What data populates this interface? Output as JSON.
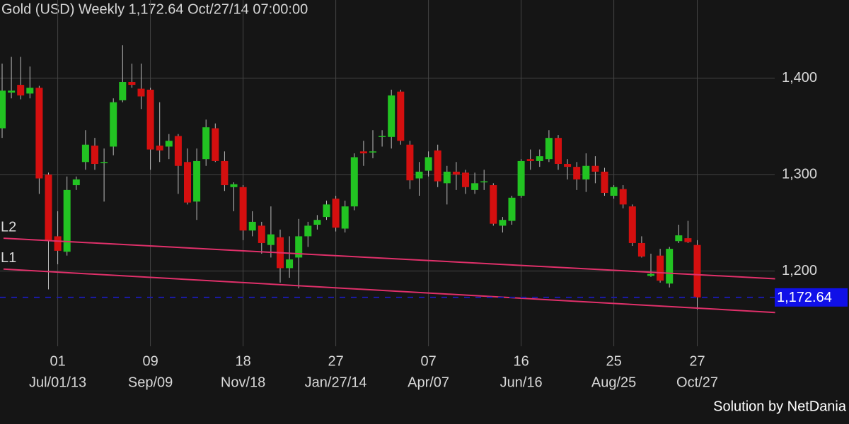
{
  "chart_data": {
    "type": "candlestick",
    "title": "Gold (USD) Weekly 1,172.64 Oct/27/14 07:00:00",
    "credit": "Solution by NetDania",
    "categories": [
      null,
      null,
      null,
      null,
      null,
      null,
      "01",
      null,
      null,
      null,
      null,
      null,
      null,
      null,
      null,
      null,
      "09",
      null,
      null,
      null,
      null,
      null,
      null,
      null,
      null,
      null,
      "18",
      null,
      null,
      null,
      null,
      null,
      null,
      null,
      null,
      null,
      "27",
      null,
      null,
      null,
      null,
      null,
      null,
      null,
      null,
      null,
      "07",
      null,
      null,
      null,
      null,
      null,
      null,
      null,
      null,
      null,
      "16",
      null,
      null,
      null,
      null,
      null,
      null,
      null,
      null,
      null,
      "25",
      null,
      null,
      null,
      null,
      null,
      null,
      null,
      null,
      "27"
    ],
    "subcategories": [
      null,
      null,
      null,
      null,
      null,
      null,
      "Jul/01/13",
      null,
      null,
      null,
      null,
      null,
      null,
      null,
      null,
      null,
      "Sep/09",
      null,
      null,
      null,
      null,
      null,
      null,
      null,
      null,
      null,
      "Nov/18",
      null,
      null,
      null,
      null,
      null,
      null,
      null,
      null,
      null,
      "Jan/27/14",
      null,
      null,
      null,
      null,
      null,
      null,
      null,
      null,
      null,
      "Apr/07",
      null,
      null,
      null,
      null,
      null,
      null,
      null,
      null,
      null,
      "Jun/16",
      null,
      null,
      null,
      null,
      null,
      null,
      null,
      null,
      null,
      "Aug/25",
      null,
      null,
      null,
      null,
      null,
      null,
      null,
      null,
      "Oct/27"
    ],
    "open": [
      1348,
      1385,
      1393,
      1384,
      1390,
      1300,
      1236,
      1220,
      1289,
      1313,
      1330,
      1312,
      1329,
      1377,
      1396,
      1389,
      1388,
      1330,
      1329,
      1340,
      1313,
      1272,
      1316,
      1348,
      1314,
      1287,
      1287,
      1242,
      1247,
      1227,
      1235,
      1203,
      1214,
      1236,
      1248,
      1256,
      1275,
      1244,
      1267,
      1324,
      1323,
      1339,
      1339,
      1386,
      1331,
      1296,
      1304,
      1325,
      1291,
      1303,
      1302,
      1284,
      1292,
      1289,
      1247,
      1252,
      1278,
      1316,
      1314,
      1316,
      1338,
      1311,
      1308,
      1295,
      1309,
      1303,
      1278,
      1285,
      1267,
      1229,
      1195,
      1216,
      1187,
      1231,
      1234,
      1227
    ],
    "high": [
      1415,
      1422,
      1422,
      1412,
      1392,
      1302,
      1262,
      1298,
      1298,
      1346,
      1338,
      1327,
      1379,
      1434,
      1415,
      1415,
      1390,
      1375,
      1342,
      1342,
      1327,
      1327,
      1357,
      1353,
      1324,
      1292,
      1289,
      1262,
      1251,
      1267,
      1243,
      1236,
      1254,
      1251,
      1258,
      1273,
      1278,
      1273,
      1322,
      1335,
      1346,
      1346,
      1388,
      1388,
      1335,
      1313,
      1324,
      1331,
      1309,
      1313,
      1305,
      1302,
      1305,
      1291,
      1256,
      1278,
      1316,
      1326,
      1326,
      1346,
      1341,
      1316,
      1313,
      1322,
      1319,
      1307,
      1289,
      1289,
      1269,
      1236,
      1218,
      1223,
      1225,
      1248,
      1252,
      1232
    ],
    "low": [
      1338,
      1379,
      1378,
      1379,
      1280,
      1181,
      1207,
      1216,
      1284,
      1305,
      1305,
      1272,
      1320,
      1375,
      1390,
      1368,
      1305,
      1313,
      1316,
      1280,
      1269,
      1253,
      1309,
      1313,
      1283,
      1262,
      1232,
      1236,
      1218,
      1214,
      1188,
      1193,
      1182,
      1225,
      1243,
      1253,
      1241,
      1240,
      1263,
      1309,
      1317,
      1329,
      1327,
      1331,
      1285,
      1278,
      1298,
      1287,
      1269,
      1284,
      1280,
      1280,
      1284,
      1247,
      1240,
      1248,
      1276,
      1305,
      1308,
      1313,
      1305,
      1295,
      1284,
      1282,
      1291,
      1278,
      1275,
      1265,
      1226,
      1214,
      1194,
      1188,
      1183,
      1229,
      1229,
      1160
    ],
    "close": [
      1387,
      1387,
      1382,
      1390,
      1296,
      1232,
      1221,
      1284,
      1295,
      1331,
      1311,
      1313,
      1375,
      1396,
      1393,
      1381,
      1326,
      1325,
      1335,
      1309,
      1271,
      1314,
      1349,
      1314,
      1289,
      1290,
      1242,
      1251,
      1229,
      1238,
      1203,
      1212,
      1236,
      1247,
      1253,
      1269,
      1245,
      1267,
      1318,
      1322,
      1324,
      1340,
      1382,
      1335,
      1294,
      1303,
      1318,
      1293,
      1303,
      1300,
      1287,
      1291,
      1293,
      1249,
      1253,
      1276,
      1314,
      1314,
      1319,
      1338,
      1311,
      1308,
      1295,
      1309,
      1303,
      1281,
      1287,
      1269,
      1229,
      1215,
      1197,
      1190,
      1223,
      1237,
      1230,
      1172.64
    ],
    "up_color": "#22c322",
    "down_color": "#d40f0f",
    "ylim": [
      1122,
      1459
    ],
    "yticks": [
      {
        "value": 1200,
        "label": "1,200"
      },
      {
        "value": 1300,
        "label": "1,300"
      },
      {
        "value": 1400,
        "label": "1,400"
      }
    ],
    "grid": true,
    "last_price": {
      "value": 1172.64,
      "label": "1,172.64"
    },
    "last_price_color": "#1a1aa8",
    "trend_lines": [
      {
        "name": "L2",
        "x": [
          0.15,
          83.4
        ],
        "y": [
          1234,
          1192
        ],
        "color": "#e0306a"
      },
      {
        "name": "L1",
        "x": [
          0.15,
          83.4
        ],
        "y": [
          1202,
          1157
        ],
        "color": "#e0306a"
      }
    ]
  }
}
